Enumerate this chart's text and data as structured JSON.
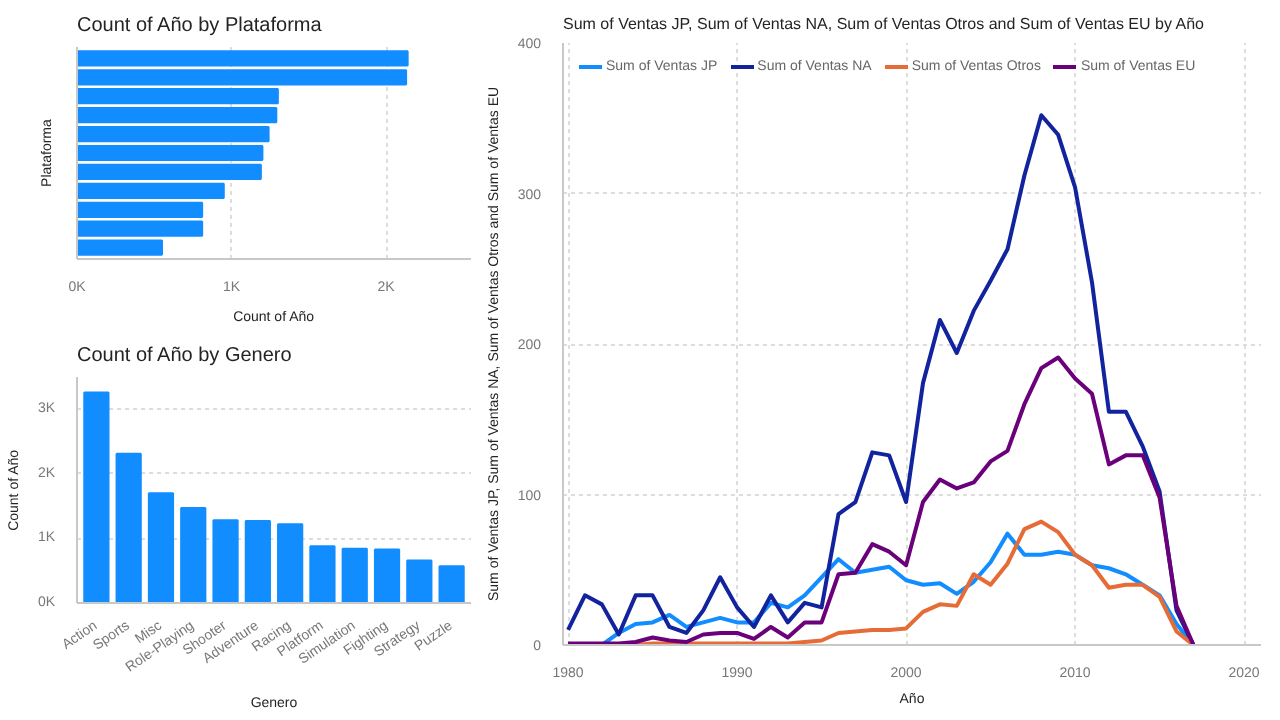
{
  "chart_data": [
    {
      "type": "bar",
      "orientation": "horizontal",
      "title": "Count of Año by Plataforma",
      "xlabel": "Count of Año",
      "ylabel": "Plataforma",
      "categories": [
        null,
        null,
        null,
        null,
        null,
        null,
        null,
        null,
        null,
        null,
        null
      ],
      "values": [
        2140,
        2130,
        1300,
        1290,
        1240,
        1200,
        1190,
        950,
        810,
        810,
        550
      ],
      "color": "#118dff",
      "xlim": [
        0,
        2550
      ],
      "xticks": [
        {
          "value": 0,
          "label": "0K"
        },
        {
          "value": 1000,
          "label": "1K"
        },
        {
          "value": 2000,
          "label": "2K"
        }
      ],
      "grid": "x"
    },
    {
      "type": "bar",
      "title": "Count of Año by Genero",
      "xlabel": "Genero",
      "ylabel": "Count of Año",
      "categories": [
        "Action",
        "Sports",
        "Misc",
        "Role-Playing",
        "Shooter",
        "Adventure",
        "Racing",
        "Platform",
        "Simulation",
        "Fighting",
        "Strategy",
        "Puzzle"
      ],
      "values": [
        3260,
        2310,
        1700,
        1470,
        1280,
        1270,
        1220,
        880,
        840,
        830,
        660,
        570
      ],
      "color": "#118dff",
      "ylim": [
        0,
        3500
      ],
      "yticks": [
        {
          "value": 0,
          "label": "0K"
        },
        {
          "value": 1000,
          "label": "1K"
        },
        {
          "value": 2000,
          "label": "2K"
        },
        {
          "value": 3000,
          "label": "3K"
        }
      ],
      "grid": "y"
    },
    {
      "type": "line",
      "title": "Sum of Ventas JP, Sum of Ventas NA, Sum of Ventas Otros and Sum of Ventas EU by Año",
      "xlabel": "Año",
      "ylabel": "Sum of Ventas JP, Sum of Ventas NA, Sum of Ventas Otros and Sum of Ventas EU",
      "legend": "top left",
      "grid": true,
      "marker": "none",
      "line_style": "solid",
      "x": [
        1980,
        1981,
        1982,
        1983,
        1984,
        1985,
        1986,
        1987,
        1988,
        1989,
        1990,
        1991,
        1992,
        1993,
        1994,
        1995,
        1996,
        1997,
        1998,
        1999,
        2000,
        2001,
        2002,
        2003,
        2004,
        2005,
        2006,
        2007,
        2008,
        2009,
        2010,
        2011,
        2012,
        2013,
        2014,
        2015,
        2016,
        2017
      ],
      "xlim": [
        1979.7,
        2021
      ],
      "xticks": [
        1980,
        1990,
        2000,
        2010,
        2020
      ],
      "ylim": [
        0,
        400
      ],
      "yticks": [
        0,
        100,
        200,
        300,
        400
      ],
      "series": [
        {
          "name": "Sum of Ventas JP",
          "color": "#118dff",
          "values": [
            0,
            0,
            0,
            8,
            14,
            15,
            20,
            12,
            15,
            18,
            15,
            15,
            28,
            25,
            33,
            45,
            57,
            48,
            50,
            52,
            43,
            40,
            41,
            34,
            42,
            55,
            74,
            60,
            60,
            62,
            60,
            53,
            51,
            47,
            40,
            33,
            14,
            0
          ]
        },
        {
          "name": "Sum of Ventas NA",
          "color": "#12239e",
          "values": [
            10,
            33,
            27,
            7,
            33,
            33,
            12,
            8,
            23,
            45,
            25,
            12,
            33,
            15,
            28,
            25,
            87,
            95,
            128,
            126,
            95,
            174,
            216,
            194,
            222,
            242,
            263,
            312,
            352,
            339,
            304,
            241,
            155,
            155,
            132,
            102,
            23,
            0
          ]
        },
        {
          "name": "Sum of Ventas Otros",
          "color": "#e66c37",
          "values": [
            null,
            null,
            null,
            0,
            0,
            1,
            1,
            1,
            1,
            1,
            1,
            1,
            1,
            1,
            2,
            3,
            8,
            9,
            10,
            10,
            11,
            22,
            27,
            26,
            47,
            40,
            54,
            77,
            82,
            75,
            60,
            53,
            38,
            40,
            40,
            32,
            9,
            0
          ]
        },
        {
          "name": "Sum of Ventas EU",
          "color": "#6b007b",
          "values": [
            1,
            1,
            1,
            1,
            2,
            5,
            3,
            2,
            7,
            8,
            8,
            4,
            12,
            5,
            15,
            15,
            47,
            48,
            67,
            62,
            53,
            95,
            110,
            104,
            108,
            122,
            129,
            160,
            184,
            191,
            177,
            167,
            120,
            126,
            126,
            98,
            26,
            0
          ]
        }
      ]
    }
  ]
}
